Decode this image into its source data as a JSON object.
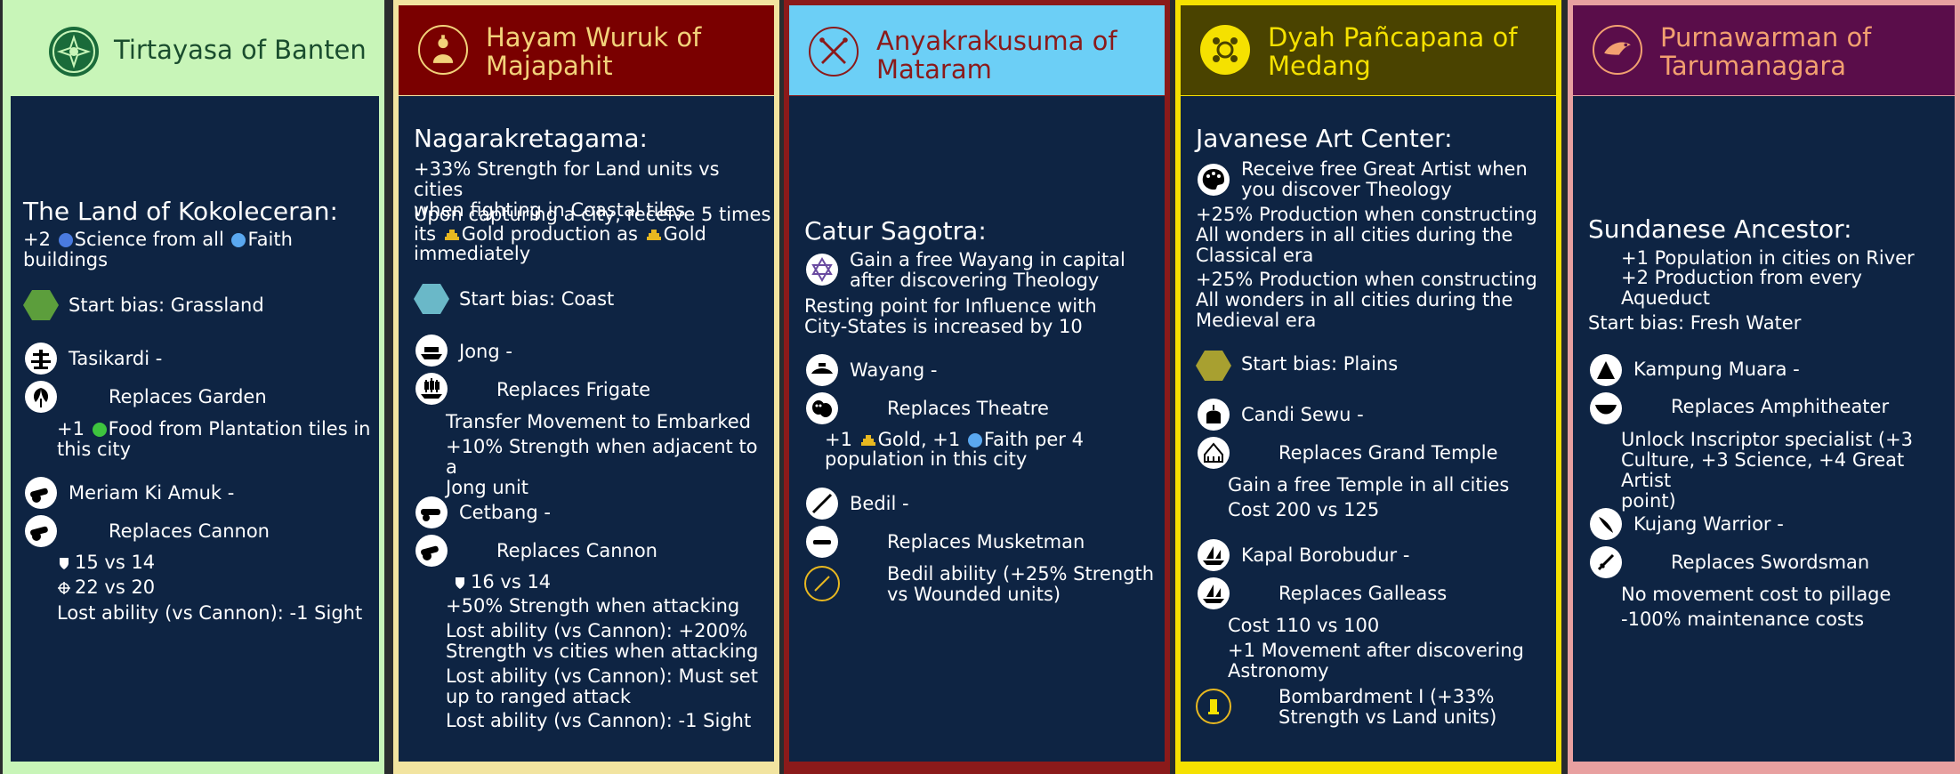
{
  "colors": {
    "body_bg": "#0e2443",
    "banten": "#c8f5b8",
    "majapahit": "#7a0000",
    "mataram": "#6ccff6",
    "medang": "#f5e100",
    "tarumanagara": "#5a0d4a"
  },
  "cards": [
    {
      "name": "Tirtayasa of Banten",
      "emblem": "lotus-emblem-icon",
      "ability_title": "The Land of Kokoleceran:",
      "ability_line1": "+2 ",
      "science": "Science from all ",
      "faith": "Faith",
      "ability_line2": "buildings",
      "start_bias": "Start bias: Grassland",
      "units": [
        {
          "name": "Tasikardi -",
          "icon": "fountain-icon"
        },
        {
          "name": "Replaces Garden",
          "icon": "garden-icon"
        }
      ],
      "food_pre": "+1 ",
      "food_text": "Food from Plantation tiles in",
      "food_text2": "this city",
      "unit2_name": "Meriam Ki Amuk -",
      "unit2_icon": "cannon-icon",
      "unit2_replace": "Replaces Cannon",
      "unit2_replace_icon": "cannon-icon",
      "stat1": "15 vs 14",
      "stat2": "22 vs 20",
      "lost": "Lost ability (vs Cannon): -1 Sight"
    },
    {
      "name": "Hayam Wuruk of Majapahit",
      "emblem": "buddha-emblem-icon",
      "ability_title": "Nagarakretagama:",
      "line1": "+33% Strength for Land units vs cities\nwhen fighting in Coastal tiles",
      "line2a": "Upon capturing a city, receive 5 times",
      "line2b_pre": "its ",
      "gold": "Gold",
      "line2b_mid": " production as ",
      "line2c": "immediately",
      "start_bias": "Start bias: Coast",
      "unit1_name": "Jong -",
      "unit1_replace": "Replaces Frigate",
      "unit1_l1": "Transfer Movement to Embarked",
      "unit1_l2": "+10% Strength when adjacent to a\nJong unit",
      "unit2_name": "Cetbang -",
      "unit2_replace": "Replaces Cannon",
      "unit2_stat": "16 vs 14",
      "unit2_l1": "+50% Strength when attacking",
      "unit2_l2": "Lost ability (vs Cannon): +200%\nStrength vs cities when attacking",
      "unit2_l3": "Lost ability (vs Cannon): Must set\nup to ranged attack",
      "unit2_l4": "Lost ability (vs Cannon): -1 Sight"
    },
    {
      "name": "Anyakrakusuma of Mataram",
      "emblem": "crossed-kris-emblem-icon",
      "ability_title": "Catur Sagotra:",
      "line1": "Gain a free Wayang in capital\nafter discovering Theology",
      "line2": "Resting point for Influence with\nCity-States is increased by 10",
      "unit1_name": "Wayang -",
      "unit1_replace": "Replaces Theatre",
      "unit1_pre": "+1 ",
      "gold": "Gold",
      "unit1_mid": ", +1 ",
      "faith": "Faith",
      "unit1_post": " per 4",
      "unit1_l2": "population in this city",
      "unit2_name": "Bedil -",
      "unit2_replace": "Replaces Musketman",
      "unit2_promo": "Bedil ability (+25% Strength\nvs Wounded units)"
    },
    {
      "name": "Dyah Pañcapana of Medang",
      "emblem": "cloud-emblem-icon",
      "ability_title": "Javanese Art Center:",
      "line1": "Receive free Great Artist when\nyou discover Theology",
      "line2": "+25% Production when constructing\nAll wonders in all cities during the\nClassical era",
      "line3": "+25% Production when constructing\nAll wonders in all cities during the\nMedieval era",
      "start_bias": "Start bias: Plains",
      "unit1_name": "Candi Sewu -",
      "unit1_replace": "Replaces Grand Temple",
      "unit1_l1": "Gain a free Temple in all cities",
      "unit1_l2": "Cost 200 vs 125",
      "unit2_name": "Kapal Borobudur -",
      "unit2_replace": "Replaces Galleass",
      "unit2_l1": "Cost 110 vs 100",
      "unit2_l2": "+1 Movement after discovering\nAstronomy",
      "unit2_promo": "Bombardment I (+33%\nStrength vs Land units)"
    },
    {
      "name": "Purnawarman of Tarumanagara",
      "emblem": "bird-emblem-icon",
      "ability_title": "Sundanese Ancestor:",
      "line1": "+1 Population in cities on River",
      "line2": "+2 Production from every\nAqueduct",
      "start_bias": "Start bias: Fresh Water",
      "unit1_name": "Kampung Muara -",
      "unit1_replace": "Replaces Amphitheater",
      "unit1_l1": "Unlock Inscriptor specialist (+3\nCulture, +3 Science, +4 Great Artist\npoint)",
      "unit2_name": "Kujang Warrior -",
      "unit2_replace": "Replaces Swordsman",
      "unit2_l1": "No movement cost to pillage",
      "unit2_l2": "-100% maintenance costs"
    }
  ]
}
